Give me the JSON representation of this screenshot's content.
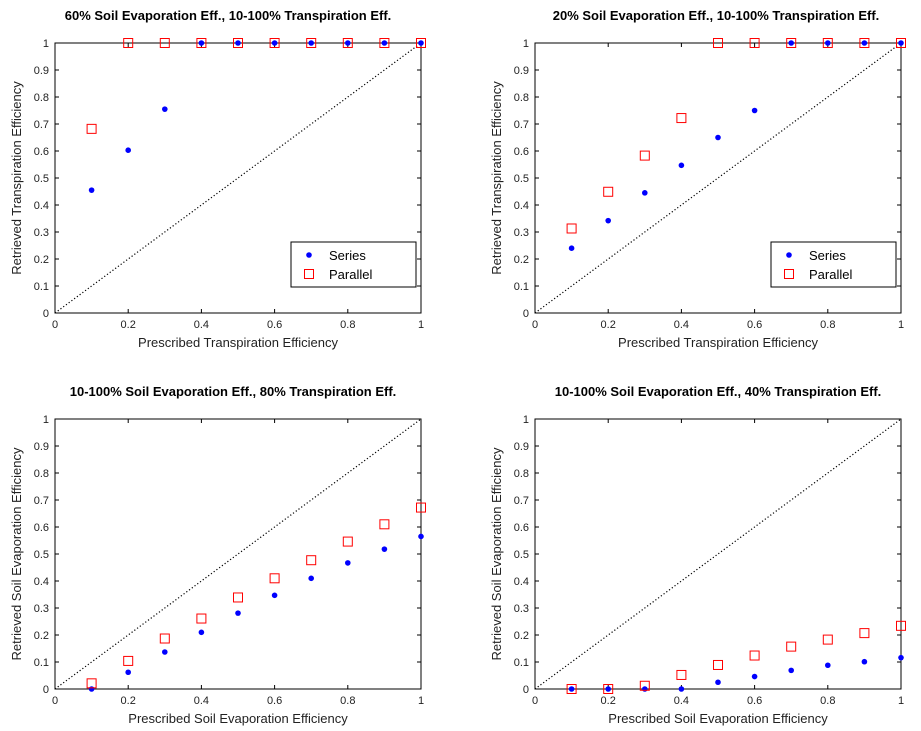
{
  "chart_data": [
    {
      "type": "scatter",
      "title": "60% Soil Evaporation Eff., 10-100% Transpiration Eff.",
      "xlabel": "Prescribed Transpiration Efficiency",
      "ylabel": "Retrieved Transpiration Efficiency",
      "xlim": [
        0,
        1
      ],
      "ylim": [
        0,
        1
      ],
      "xticks": [
        "0",
        "0.2",
        "0.4",
        "0.6",
        "0.8",
        "1"
      ],
      "yticks": [
        "0",
        "0.1",
        "0.2",
        "0.3",
        "0.4",
        "0.5",
        "0.6",
        "0.7",
        "0.8",
        "0.9",
        "1"
      ],
      "grid": false,
      "reference_line": "1:1 dotted",
      "legend": {
        "placement": "bottom-right",
        "entries": [
          "Series",
          "Parallel"
        ]
      },
      "series": [
        {
          "name": "Series",
          "marker": "dot",
          "color": "#0000ff",
          "x": [
            0.1,
            0.2,
            0.3,
            0.4,
            0.5,
            0.6,
            0.7,
            0.8,
            0.9,
            1.0
          ],
          "y": [
            0.455,
            0.603,
            0.755,
            1.0,
            1.0,
            1.0,
            1.0,
            1.0,
            1.0,
            1.0
          ]
        },
        {
          "name": "Parallel",
          "marker": "square",
          "color": "#ff0000",
          "x": [
            0.1,
            0.2,
            0.3,
            0.4,
            0.5,
            0.6,
            0.7,
            0.8,
            0.9,
            1.0
          ],
          "y": [
            0.682,
            1.0,
            1.0,
            1.0,
            1.0,
            1.0,
            1.0,
            1.0,
            1.0,
            1.0
          ]
        }
      ]
    },
    {
      "type": "scatter",
      "title": "20% Soil Evaporation Eff., 10-100% Transpiration Eff.",
      "xlabel": "Prescribed Transpiration Efficiency",
      "ylabel": "Retrieved Transpiration Efficiency",
      "xlim": [
        0,
        1
      ],
      "ylim": [
        0,
        1
      ],
      "xticks": [
        "0",
        "0.2",
        "0.4",
        "0.6",
        "0.8",
        "1"
      ],
      "yticks": [
        "0",
        "0.1",
        "0.2",
        "0.3",
        "0.4",
        "0.5",
        "0.6",
        "0.7",
        "0.8",
        "0.9",
        "1"
      ],
      "grid": false,
      "reference_line": "1:1 dotted",
      "legend": {
        "placement": "bottom-right",
        "entries": [
          "Series",
          "Parallel"
        ]
      },
      "series": [
        {
          "name": "Series",
          "marker": "dot",
          "color": "#0000ff",
          "x": [
            0.1,
            0.2,
            0.3,
            0.4,
            0.5,
            0.6,
            0.7,
            0.8,
            0.9,
            1.0
          ],
          "y": [
            0.24,
            0.342,
            0.445,
            0.547,
            0.65,
            0.75,
            1.0,
            1.0,
            1.0,
            1.0
          ]
        },
        {
          "name": "Parallel",
          "marker": "square",
          "color": "#ff0000",
          "x": [
            0.1,
            0.2,
            0.3,
            0.4,
            0.5,
            0.6,
            0.7,
            0.8,
            0.9,
            1.0
          ],
          "y": [
            0.313,
            0.449,
            0.583,
            0.722,
            1.0,
            1.0,
            1.0,
            1.0,
            1.0,
            1.0
          ]
        }
      ]
    },
    {
      "type": "scatter",
      "title": "10-100% Soil Evaporation Eff., 80% Transpiration Eff.",
      "xlabel": "Prescribed Soil Evaporation Efficiency",
      "ylabel": "Retrieved Soil Evaporation Efficiency",
      "xlim": [
        0,
        1
      ],
      "ylim": [
        0,
        1
      ],
      "xticks": [
        "0",
        "0.2",
        "0.4",
        "0.6",
        "0.8",
        "1"
      ],
      "yticks": [
        "0",
        "0.1",
        "0.2",
        "0.3",
        "0.4",
        "0.5",
        "0.6",
        "0.7",
        "0.8",
        "0.9",
        "1"
      ],
      "grid": false,
      "reference_line": "1:1 dotted",
      "series": [
        {
          "name": "Series",
          "marker": "dot",
          "color": "#0000ff",
          "x": [
            0.1,
            0.2,
            0.3,
            0.4,
            0.5,
            0.6,
            0.7,
            0.8,
            0.9,
            1.0
          ],
          "y": [
            0.0,
            0.062,
            0.137,
            0.21,
            0.281,
            0.347,
            0.41,
            0.467,
            0.518,
            0.565
          ]
        },
        {
          "name": "Parallel",
          "marker": "square",
          "color": "#ff0000",
          "x": [
            0.1,
            0.2,
            0.3,
            0.4,
            0.5,
            0.6,
            0.7,
            0.8,
            0.9,
            1.0
          ],
          "y": [
            0.021,
            0.104,
            0.187,
            0.261,
            0.339,
            0.41,
            0.477,
            0.546,
            0.61,
            0.672
          ]
        }
      ]
    },
    {
      "type": "scatter",
      "title": "10-100% Soil Evaporation Eff., 40% Transpiration Eff.",
      "xlabel": "Prescribed Soil Evaporation Efficiency",
      "ylabel": "Retrieved Soil Evaporation Efficiency",
      "xlim": [
        0,
        1
      ],
      "ylim": [
        0,
        1
      ],
      "xticks": [
        "0",
        "0.2",
        "0.4",
        "0.6",
        "0.8",
        "1"
      ],
      "yticks": [
        "0",
        "0.1",
        "0.2",
        "0.3",
        "0.4",
        "0.5",
        "0.6",
        "0.7",
        "0.8",
        "0.9",
        "1"
      ],
      "grid": false,
      "reference_line": "1:1 dotted",
      "series": [
        {
          "name": "Series",
          "marker": "dot",
          "color": "#0000ff",
          "x": [
            0.1,
            0.2,
            0.3,
            0.4,
            0.5,
            0.6,
            0.7,
            0.8,
            0.9,
            1.0
          ],
          "y": [
            0.0,
            0.0,
            0.0,
            0.0,
            0.025,
            0.046,
            0.069,
            0.088,
            0.101,
            0.116
          ]
        },
        {
          "name": "Parallel",
          "marker": "square",
          "color": "#ff0000",
          "x": [
            0.1,
            0.2,
            0.3,
            0.4,
            0.5,
            0.6,
            0.7,
            0.8,
            0.9,
            1.0
          ],
          "y": [
            0.0,
            0.0,
            0.012,
            0.052,
            0.089,
            0.124,
            0.157,
            0.183,
            0.207,
            0.234
          ]
        }
      ]
    }
  ]
}
